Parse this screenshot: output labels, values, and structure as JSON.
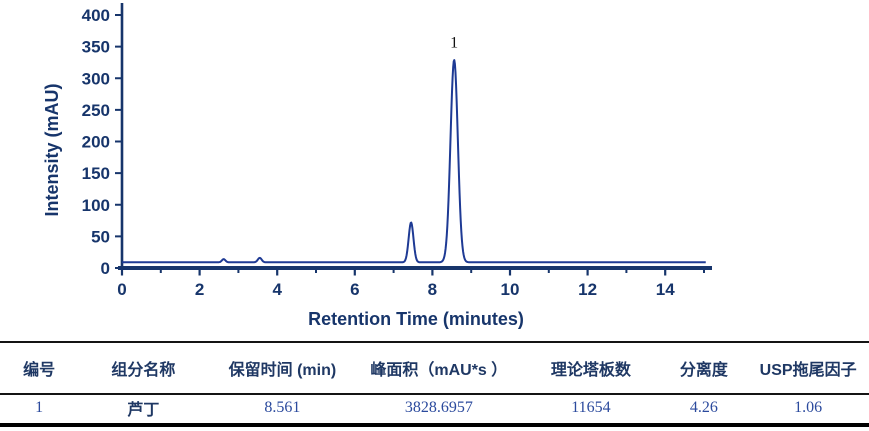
{
  "colors": {
    "axis_and_text": "#17356b",
    "trace_line": "#1e3a94",
    "table_header_text": "#1f3864",
    "table_value_text": "#2b4a9d",
    "table_rule": "#141414",
    "table_rule_bold": "#000000",
    "peak_label_text": "#111111",
    "background": "#ffffff"
  },
  "chart_data": {
    "type": "line",
    "title": "",
    "xlabel": "Retention Time (minutes)",
    "ylabel": "Intensity (mAU)",
    "xlim": [
      0,
      15.2
    ],
    "ylim": [
      0,
      400
    ],
    "x_major_ticks": [
      0,
      2,
      4,
      6,
      8,
      10,
      12,
      14
    ],
    "x_minor_ticks": [
      1,
      3,
      5,
      7,
      9,
      11,
      13,
      15
    ],
    "y_ticks": [
      0,
      50,
      100,
      150,
      200,
      250,
      300,
      350,
      400
    ],
    "grid": false,
    "legend": "none",
    "baseline_mau": 9,
    "peaks": [
      {
        "center_min": 2.62,
        "height_mau": 5,
        "sigma_min": 0.045
      },
      {
        "center_min": 3.55,
        "height_mau": 7,
        "sigma_min": 0.05
      },
      {
        "center_min": 7.45,
        "height_mau": 63,
        "sigma_min": 0.062
      },
      {
        "center_min": 8.561,
        "height_mau": 320,
        "sigma_min": 0.095
      }
    ],
    "annotations": [
      {
        "text": "1",
        "x_min": 8.561,
        "y_mau": 349
      }
    ]
  },
  "table": {
    "headers": [
      "编号",
      "组分名称",
      "保留时间 (min)",
      "峰面积（mAU*s ）",
      "理论塔板数",
      "分离度",
      "USP拖尾因子"
    ],
    "rows": [
      [
        "1",
        "芦丁",
        "8.561",
        "3828.6957",
        "11654",
        "4.26",
        "1.06"
      ]
    ]
  }
}
